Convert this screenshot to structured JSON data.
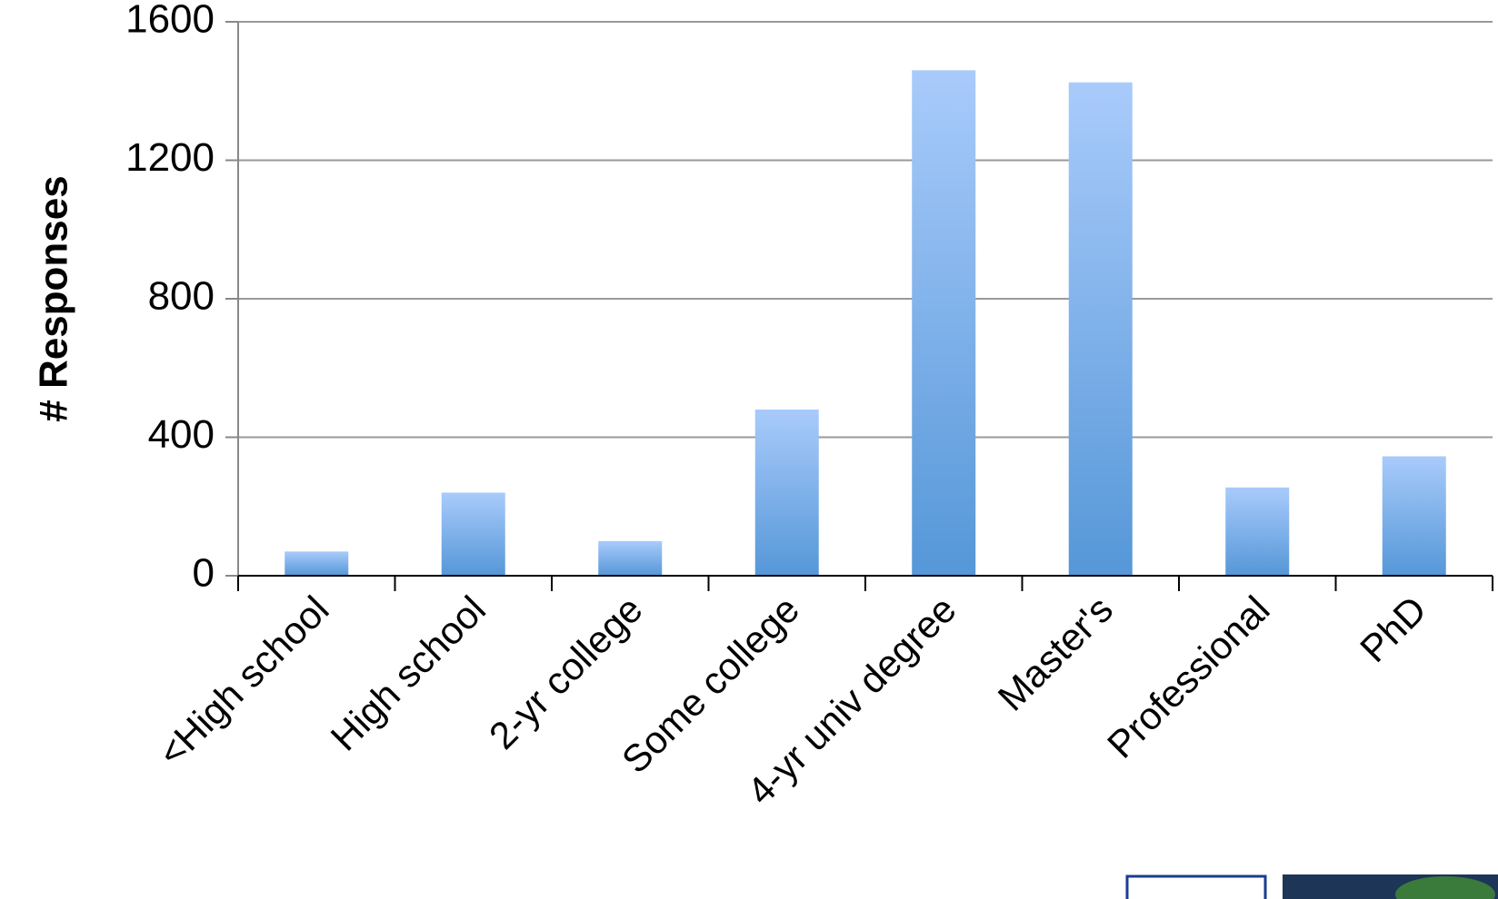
{
  "chart_data": {
    "type": "bar",
    "y_label": "# Responses",
    "categories": [
      "<High school",
      "High school",
      "2-yr college",
      "Some college",
      "4-yr univ degree",
      "Master's",
      "Professional",
      "PhD"
    ],
    "values": [
      70,
      240,
      100,
      480,
      1460,
      1425,
      255,
      345
    ],
    "ylim": [
      0,
      1600
    ],
    "yticks": [
      0,
      400,
      800,
      1200,
      1600
    ],
    "grid": true
  }
}
